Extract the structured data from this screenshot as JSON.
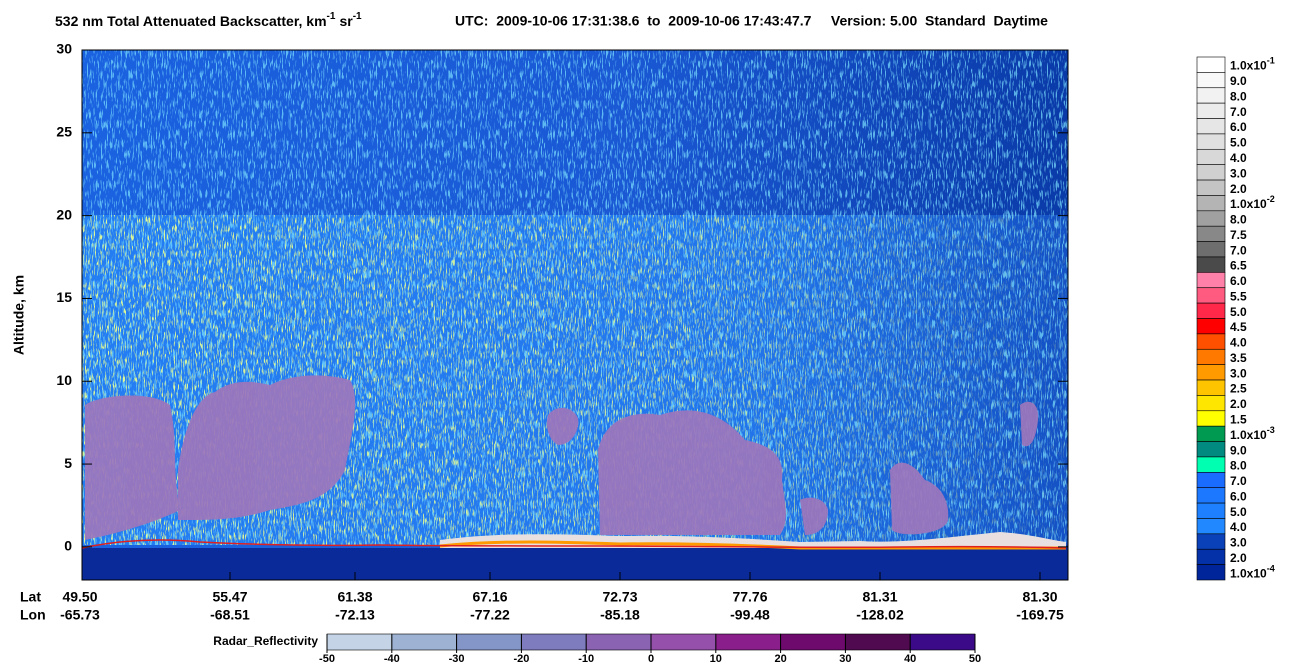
{
  "chart_data": {
    "type": "curtain",
    "title": {
      "text": "532 nm Total Attenuated Backscatter, km",
      "exp1": "-1",
      "unit2": "sr",
      "exp2": "-1",
      "info": "UTC:  2009-10-06 17:31:38.6  to  2009-10-06 17:43:47.7     Version: 5.00  Standard  Daytime"
    },
    "ylabel": "Altitude, km",
    "ylim": [
      -2,
      30
    ],
    "yticks": [
      0,
      5,
      10,
      15,
      20,
      25,
      30
    ],
    "x_rows": {
      "lat_label": "Lat",
      "lon_label": "Lon",
      "lat": [
        "49.50",
        "55.47",
        "61.38",
        "67.16",
        "72.73",
        "77.76",
        "81.31",
        "81.30"
      ],
      "lon": [
        "-65.73",
        "-68.51",
        "-72.13",
        "-77.22",
        "-85.18",
        "-99.48",
        "-128.02",
        "-169.75"
      ]
    },
    "colorbar": {
      "labels": [
        {
          "text": "1.0x10",
          "exp": "-1"
        },
        {
          "text": "9.0"
        },
        {
          "text": "8.0"
        },
        {
          "text": "7.0"
        },
        {
          "text": "6.0"
        },
        {
          "text": "5.0"
        },
        {
          "text": "4.0"
        },
        {
          "text": "3.0"
        },
        {
          "text": "2.0"
        },
        {
          "text": "1.0x10",
          "exp": "-2"
        },
        {
          "text": "8.0"
        },
        {
          "text": "7.5"
        },
        {
          "text": "7.0"
        },
        {
          "text": "6.5"
        },
        {
          "text": "6.0"
        },
        {
          "text": "5.5"
        },
        {
          "text": "5.0"
        },
        {
          "text": "4.5"
        },
        {
          "text": "4.0"
        },
        {
          "text": "3.5"
        },
        {
          "text": "3.0"
        },
        {
          "text": "2.5"
        },
        {
          "text": "2.0"
        },
        {
          "text": "1.5"
        },
        {
          "text": "1.0x10",
          "exp": "-3"
        },
        {
          "text": "9.0"
        },
        {
          "text": "8.0"
        },
        {
          "text": "7.0"
        },
        {
          "text": "6.0"
        },
        {
          "text": "5.0"
        },
        {
          "text": "4.0"
        },
        {
          "text": "3.0"
        },
        {
          "text": "2.0"
        },
        {
          "text": "1.0x10",
          "exp": "-4"
        }
      ],
      "colors": [
        "#ffffff",
        "#f8f8f8",
        "#f2f2f2",
        "#ececec",
        "#e6e6e6",
        "#e0e0e0",
        "#d8d8d8",
        "#d0d0d0",
        "#c4c4c4",
        "#b4b4b4",
        "#a0a0a0",
        "#888888",
        "#6e6e6e",
        "#4a4a4a",
        "#ff80a8",
        "#ff5a80",
        "#ff2848",
        "#ff0000",
        "#ff5000",
        "#ff7800",
        "#ff9a00",
        "#ffc400",
        "#ffe600",
        "#ffff00",
        "#009a50",
        "#008a80",
        "#00ffb0",
        "#1a6cff",
        "#1c78ff",
        "#1e80ff",
        "#2288ff",
        "#0a40b8",
        "#0430a8",
        "#00259a"
      ]
    },
    "radar_colorbar": {
      "label": "Radar_Reflectivity",
      "ticks": [
        -50,
        -40,
        -30,
        -20,
        -10,
        0,
        10,
        20,
        30,
        40,
        50
      ],
      "colors": [
        "#c4d4e6",
        "#9eb2d4",
        "#8496c8",
        "#7e7cbe",
        "#8a64b2",
        "#9550ac",
        "#8a1e8a",
        "#6e0a6e",
        "#500a50",
        "#3a0a88"
      ]
    }
  }
}
